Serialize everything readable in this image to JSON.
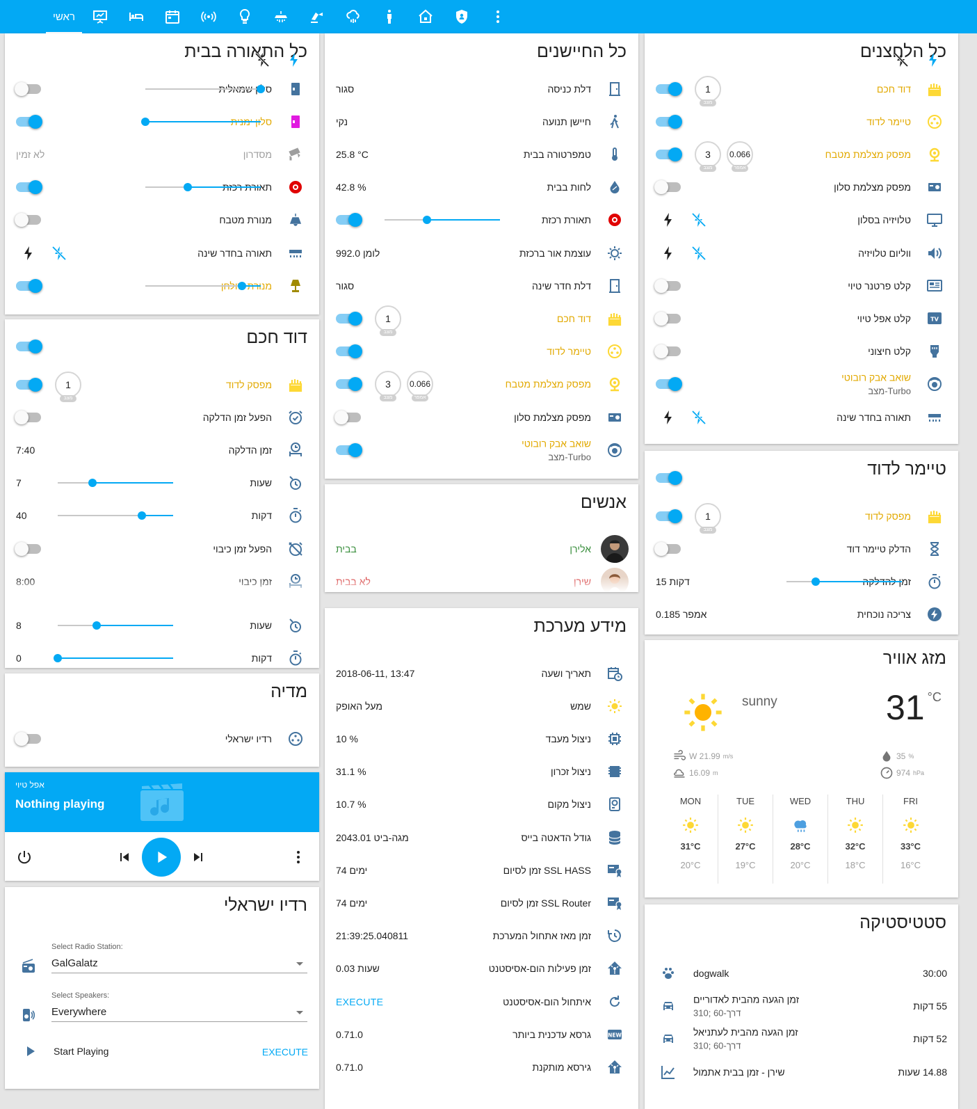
{
  "colors": {
    "accent": "#03a9f4",
    "on_state": "#e2a900",
    "icon": "#44739e"
  },
  "nav": {
    "tabs": [
      {
        "label": "ראשי",
        "icon": "home-text"
      },
      {
        "icon": "presentation-icon"
      },
      {
        "icon": "bed-icon"
      },
      {
        "icon": "calendar-icon"
      },
      {
        "icon": "wifi-radio-icon"
      },
      {
        "icon": "lightbulb-icon"
      },
      {
        "icon": "water-heater-icon"
      },
      {
        "icon": "robot-vacuum-icon"
      },
      {
        "icon": "weather-rain-icon"
      },
      {
        "icon": "person-icon"
      },
      {
        "icon": "house-icon"
      },
      {
        "icon": "shield-icon"
      },
      {
        "icon": "more-vert-icon"
      }
    ]
  },
  "lights": {
    "title": "כל התאורה בבית",
    "rows": [
      {
        "label": "סלון שמאלית",
        "icon": "panel-icon",
        "type": "slider",
        "on": false,
        "level": 0
      },
      {
        "label": "סלון ימנית",
        "icon": "panel-pink-icon",
        "type": "slider",
        "on": true,
        "level": 1
      },
      {
        "label": "מסדרון",
        "icon": "cctv-icon",
        "type": "text",
        "value": "לא זמין",
        "disabled": true
      },
      {
        "label": "תאורת רכזת",
        "icon": "hub-red-icon",
        "type": "slider",
        "on": true,
        "level": 0.63
      },
      {
        "label": "מנורת מטבח",
        "icon": "ceiling-lamp-icon",
        "type": "toggle",
        "on": false
      },
      {
        "label": "תאורה בחדר שינה",
        "icon": "strip-light-icon",
        "type": "bolts"
      },
      {
        "label": "מנורת שולחן",
        "icon": "desk-lamp-icon",
        "type": "slider",
        "on": true,
        "level": 0.16
      }
    ]
  },
  "boiler": {
    "title": "דוד חכם",
    "on": true,
    "rows": [
      {
        "label": "מפסק לדוד",
        "icon": "water-boiler-icon",
        "type": "badge",
        "badge": "1",
        "badge_unit": "מצב",
        "on": true
      },
      {
        "label": "הפעל זמן הדלקה",
        "icon": "alarm-check-icon",
        "type": "toggle",
        "on": false
      },
      {
        "label": "זמן הדלקה",
        "icon": "clock-person-icon",
        "type": "text",
        "value": "7:40"
      },
      {
        "label": "שעות",
        "icon": "timer-sand-icon",
        "type": "slider",
        "value": "7",
        "level": 0.7
      },
      {
        "label": "דקות",
        "icon": "timer-icon",
        "type": "slider",
        "value": "40",
        "level": 0.27
      },
      {
        "label": "הפעל זמן כיבוי",
        "icon": "alarm-off-icon",
        "type": "toggle",
        "on": false
      },
      {
        "label": "זמן כיבוי",
        "icon": "clock-person-icon",
        "type": "text",
        "value": "8:00"
      },
      {
        "label": "שעות",
        "icon": "timer-sand-icon",
        "type": "slider",
        "value": "8",
        "level": 0.66
      },
      {
        "label": "דקות",
        "icon": "timer-icon",
        "type": "slider",
        "value": "0",
        "level": 1
      }
    ]
  },
  "media": {
    "title": "מדיה",
    "rows": [
      {
        "label": "רדיו ישראלי",
        "icon": "speaker-icon",
        "type": "toggle",
        "on": false
      }
    ]
  },
  "player": {
    "source": "אפל טיוי",
    "status": "Nothing playing"
  },
  "radio": {
    "title": "רדיו ישראלי",
    "station_label": "Select Radio Station:",
    "station": "GalGalatz",
    "speakers_label": "Select Speakers:",
    "speakers": "Everywhere",
    "start_label": "Start Playing",
    "execute": "EXECUTE"
  },
  "sensors": {
    "title": "כל החיישנים",
    "rows": [
      {
        "label": "דלת כניסה",
        "icon": "door-icon",
        "type": "text",
        "value": "סגור"
      },
      {
        "label": "חיישן תנועה",
        "icon": "walk-icon",
        "type": "text",
        "value": "נקי"
      },
      {
        "label": "טמפרטורה בבית",
        "icon": "thermometer-icon",
        "type": "text",
        "value": "25.8 °C"
      },
      {
        "label": "לחות בבית",
        "icon": "water-percent-icon",
        "type": "text",
        "value": "42.8 %"
      },
      {
        "label": "תאורת רכזת",
        "icon": "hub-red-icon",
        "type": "slider",
        "on": true,
        "level": 0.63
      },
      {
        "label": "עוצמת אור ברכזת",
        "icon": "brightness-icon",
        "type": "text",
        "value": "992.0 לומן"
      },
      {
        "label": "דלת חדר שינה",
        "icon": "door-icon",
        "type": "text",
        "value": "סגור"
      },
      {
        "label": "דוד חכם",
        "icon": "water-boiler-icon",
        "type": "badge",
        "badge": "1",
        "badge_unit": "מצב",
        "on": true
      },
      {
        "label": "טיימר לדוד",
        "icon": "timer-dots-icon",
        "type": "toggle",
        "on": true
      },
      {
        "label": "מפסק מצלמת מטבח",
        "icon": "webcam-icon",
        "type": "badge2",
        "badge": "3",
        "badge_unit": "מצב",
        "badge2": "0.066",
        "badge2_unit": "אמפר",
        "on": true
      },
      {
        "label": "מפסק מצלמת סלון",
        "icon": "projector-icon",
        "type": "toggle",
        "on": false
      },
      {
        "label": "שואב אבק רובוטי",
        "sub": "מצב-Turbo",
        "icon": "robot-vacuum-icon",
        "type": "toggle",
        "on": true
      }
    ]
  },
  "people": {
    "title": "אנשים",
    "rows": [
      {
        "name": "אלירן",
        "state": "בבית",
        "state_color": "#388e3c",
        "name_color": "#388e3c"
      },
      {
        "name": "שירן",
        "state": "לא בבית",
        "state_color": "#d32f2f",
        "name_color": "#d32f2f"
      }
    ]
  },
  "sysinfo": {
    "title": "מידע מערכת",
    "rows": [
      {
        "label": "תאריך ושעה",
        "icon": "calendar-clock-icon",
        "value": "2018-06-11, 13:47"
      },
      {
        "label": "שמש",
        "icon": "sun-icon",
        "value": "מעל האופק"
      },
      {
        "label": "ניצול מעבד",
        "icon": "cpu-icon",
        "value": "10 %"
      },
      {
        "label": "ניצול זכרון",
        "icon": "memory-icon",
        "value": "31.1 %"
      },
      {
        "label": "ניצול מקום",
        "icon": "harddisk-icon",
        "value": "10.7 %"
      },
      {
        "label": "גודל הדאטה בייס",
        "icon": "database-icon",
        "value": "2043.01 מגה-ביט"
      },
      {
        "label": "זמן לסיום SSL HASS",
        "icon": "certificate-icon",
        "value": "74 ימים"
      },
      {
        "label": "זמן לסיום SSL Router",
        "icon": "certificate-icon",
        "value": "74 ימים"
      },
      {
        "label": "זמן מאז אתחול המערכת",
        "icon": "restart-icon",
        "value": "21:39:25.040811"
      },
      {
        "label": "זמן פעילות הום-אסיסטנט",
        "icon": "home-assistant-icon",
        "value": "0.03 שעות"
      },
      {
        "label": "איתחול הום-אסיסטנט",
        "icon": "reload-icon",
        "value": "EXECUTE",
        "execute": true
      },
      {
        "label": "גרסא עדכנית ביותר",
        "icon": "new-box-icon",
        "value": "0.71.0"
      },
      {
        "label": "גירסא מותקנת",
        "icon": "home-assistant-icon",
        "value": "0.71.0"
      }
    ]
  },
  "switches": {
    "title": "כל הלחצנים",
    "rows": [
      {
        "label": "דוד חכם",
        "icon": "water-boiler-icon",
        "type": "badge",
        "badge": "1",
        "badge_unit": "מצב",
        "on": true
      },
      {
        "label": "טיימר לדוד",
        "icon": "timer-dots-icon",
        "type": "toggle",
        "on": true
      },
      {
        "label": "מפסק מצלמת מטבח",
        "icon": "webcam-icon",
        "type": "badge2",
        "badge": "3",
        "badge_unit": "מצב",
        "badge2": "0.066",
        "badge2_unit": "אמפר",
        "on": true
      },
      {
        "label": "מפסק מצלמת סלון",
        "icon": "projector-icon",
        "type": "toggle",
        "on": false
      },
      {
        "label": "טלויזיה בסלון",
        "icon": "monitor-icon",
        "type": "bolts"
      },
      {
        "label": "ווליום טלויזיה",
        "icon": "volume-icon",
        "type": "bolts"
      },
      {
        "label": "קלט פרטנר טיוי",
        "icon": "tv-box-icon",
        "type": "toggle",
        "on": false
      },
      {
        "label": "קלט אפל טיוי",
        "icon": "tv-icon",
        "type": "toggle",
        "on": false
      },
      {
        "label": "קלט חיצוני",
        "icon": "hdmi-icon",
        "type": "toggle",
        "on": false
      },
      {
        "label": "שואב אבק רובוטי",
        "sub": "מצב-Turbo",
        "icon": "robot-vacuum-icon",
        "type": "toggle",
        "on": true
      },
      {
        "label": "תאורה בחדר שינה",
        "icon": "strip-light-icon",
        "type": "bolts"
      }
    ]
  },
  "boiler_timer": {
    "title": "טיימר לדוד",
    "on": true,
    "rows": [
      {
        "label": "מפסק לדוד",
        "icon": "water-boiler-icon",
        "type": "badge",
        "badge": "1",
        "badge_unit": "מצב",
        "on": true
      },
      {
        "label": "הדלק טיימר דוד",
        "icon": "hourglass-icon",
        "type": "toggle",
        "on": false
      },
      {
        "label": "זמן להדלקה",
        "icon": "timer-icon",
        "type": "slider",
        "value": "15 דקות",
        "level": 0.75
      },
      {
        "label": "צריכה נוכחית",
        "icon": "flash-circle-icon",
        "type": "text",
        "value": "0.185 אמפר"
      }
    ]
  },
  "weather": {
    "title": "מזג אוויר",
    "condition": "sunny",
    "temp": "31",
    "unit": "°C",
    "wind": "W 21.99",
    "wind_unit": "m/s",
    "visibility": "16.09",
    "visibility_unit": "m",
    "humidity": "35",
    "humidity_unit": "%",
    "pressure": "974",
    "pressure_unit": "hPa",
    "forecast": [
      {
        "day": "MON",
        "icon": "sun-icon",
        "high": "31°C",
        "low": "20°C"
      },
      {
        "day": "TUE",
        "icon": "sun-icon",
        "high": "27°C",
        "low": "19°C"
      },
      {
        "day": "WED",
        "icon": "cloud-rain-icon",
        "high": "28°C",
        "low": "20°C"
      },
      {
        "day": "THU",
        "icon": "sun-icon",
        "high": "32°C",
        "low": "18°C"
      },
      {
        "day": "FRI",
        "icon": "sun-icon",
        "high": "33°C",
        "low": "16°C"
      }
    ]
  },
  "stats": {
    "title": "סטטיסטיקה",
    "rows": [
      {
        "label": "dogwalk",
        "icon": "paw-icon",
        "value": "30:00"
      },
      {
        "label": "זמן הגעה מהבית לאדוריים",
        "sub": "דרך-60 ;310",
        "icon": "car-icon",
        "value": "55 דקות"
      },
      {
        "label": "זמן הגעה מהבית לעתניאל",
        "sub": "דרך-60 ;310",
        "icon": "car-icon",
        "value": "52 דקות"
      },
      {
        "label": "שירן - זמן בבית אתמול",
        "icon": "chart-line-icon",
        "value": "14.88 שעות"
      }
    ]
  }
}
